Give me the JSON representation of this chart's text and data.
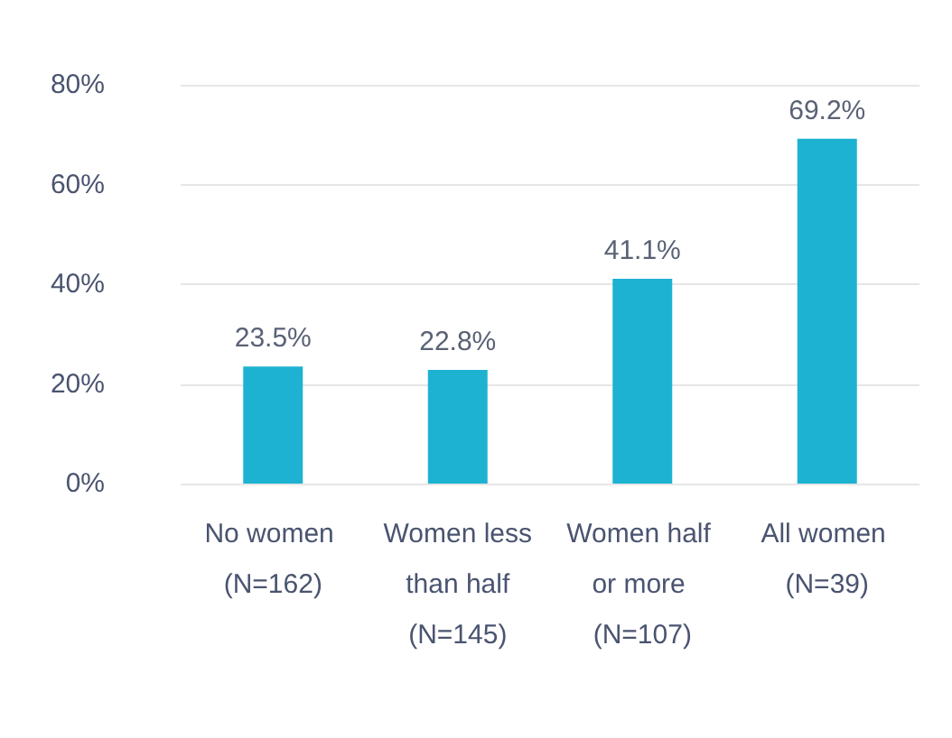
{
  "chart_data": {
    "type": "bar",
    "categories": [
      "No women (N=162)",
      "Women less than half (N=145)",
      "Women half or more (N=107)",
      "All women (N=39)"
    ],
    "values": [
      23.5,
      22.8,
      41.1,
      69.2
    ],
    "color": "#1eb2d2",
    "ylim": [
      0,
      80
    ],
    "yticks": [
      {
        "value": 0,
        "label": "0%"
      },
      {
        "value": 20,
        "label": "20%"
      },
      {
        "value": 40,
        "label": "40%"
      },
      {
        "value": 60,
        "label": "60%"
      },
      {
        "value": 80,
        "label": "80%"
      }
    ],
    "grid": "y",
    "value_labels": [
      "23.5%",
      "22.8%",
      "41.1%",
      "69.2%"
    ]
  }
}
